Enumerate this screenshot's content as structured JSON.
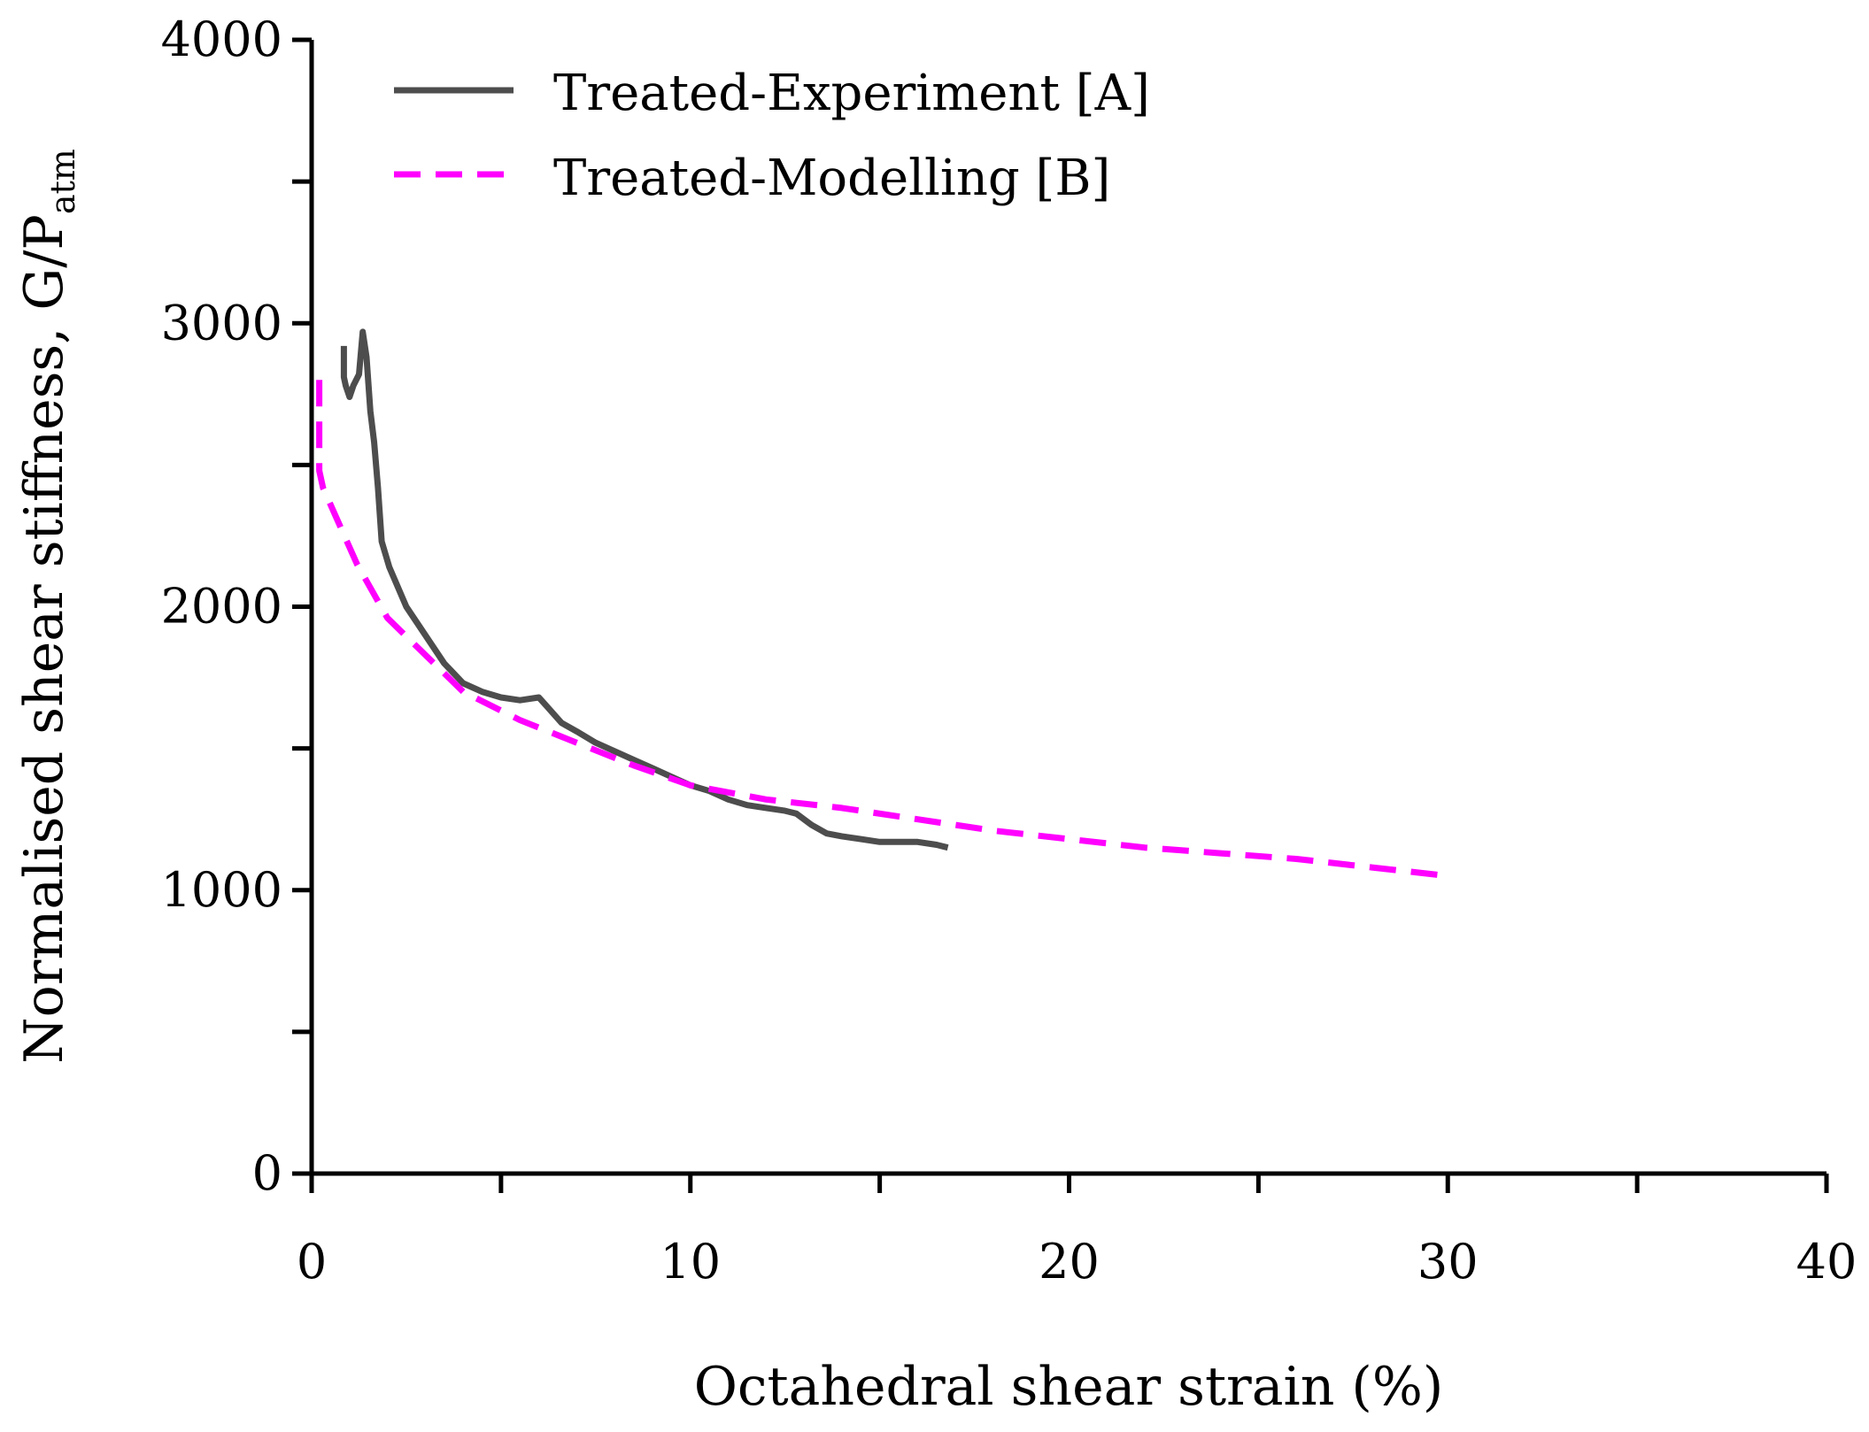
{
  "chart_data": {
    "type": "line",
    "xlabel": "Octahedral shear strain (%)",
    "ylabel": "Normalised shear stiffness, G/P",
    "ylabel_subscript": "atm",
    "xlim": [
      0,
      40
    ],
    "ylim": [
      0,
      4000
    ],
    "x_major_ticks": [
      0,
      10,
      20,
      30,
      40
    ],
    "x_tick_labels": [
      "0",
      "10",
      "20",
      "30",
      "40"
    ],
    "x_minor_ticks": [
      5,
      15,
      25,
      35
    ],
    "y_major_ticks": [
      0,
      1000,
      2000,
      3000,
      4000
    ],
    "y_tick_labels": [
      "0",
      "1000",
      "2000",
      "3000",
      "4000"
    ],
    "y_minor_ticks": [
      500,
      1500,
      2500,
      3500
    ],
    "grid": false,
    "legend_position": "top-left",
    "series": [
      {
        "name": "Treated-Experiment [A]",
        "color": "#4d4d4d",
        "style": "solid",
        "x": [
          0.85,
          0.85,
          0.9,
          1.0,
          1.1,
          1.25,
          1.35,
          1.45,
          1.55,
          1.65,
          1.75,
          1.85,
          2.05,
          2.5,
          3.0,
          3.5,
          4.0,
          4.5,
          5.0,
          5.5,
          6.0,
          6.2,
          6.6,
          7.0,
          7.5,
          8.0,
          8.5,
          9.0,
          9.5,
          10.0,
          10.5,
          11.0,
          11.5,
          12.0,
          12.5,
          12.8,
          13.2,
          13.6,
          14.0,
          14.5,
          15.0,
          15.5,
          16.0,
          16.5,
          16.8
        ],
        "y": [
          2920,
          2810,
          2780,
          2740,
          2780,
          2820,
          2970,
          2880,
          2690,
          2580,
          2420,
          2230,
          2140,
          2000,
          1900,
          1800,
          1730,
          1700,
          1680,
          1670,
          1680,
          1650,
          1590,
          1560,
          1520,
          1490,
          1460,
          1430,
          1400,
          1370,
          1350,
          1320,
          1300,
          1290,
          1280,
          1270,
          1230,
          1200,
          1190,
          1180,
          1170,
          1170,
          1170,
          1160,
          1150
        ]
      },
      {
        "name": "Treated-Modelling [B]",
        "color": "#ff00ff",
        "style": "dashed",
        "x": [
          0.2,
          0.2,
          0.3,
          0.7,
          1.2,
          2.0,
          3.0,
          4.0,
          5.5,
          7.0,
          8.5,
          10.0,
          12.0,
          14.0,
          16.0,
          18.0,
          20.0,
          22.0,
          24.0,
          26.0,
          28.0,
          30.0
        ],
        "y": [
          2800,
          2480,
          2420,
          2300,
          2150,
          1960,
          1830,
          1700,
          1600,
          1520,
          1440,
          1370,
          1320,
          1290,
          1250,
          1210,
          1180,
          1150,
          1130,
          1110,
          1080,
          1050
        ]
      }
    ]
  }
}
